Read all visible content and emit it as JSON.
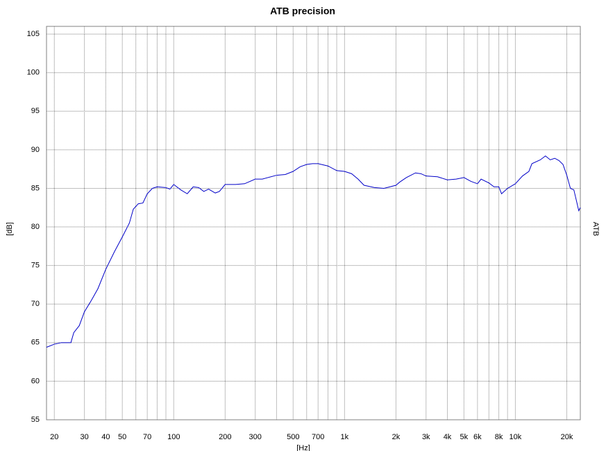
{
  "chart_data": {
    "type": "line",
    "title": "ATB precision",
    "x_label": "[Hz]",
    "y_label": "[dB]",
    "right_label": "ATB",
    "color": "#0000c8",
    "x_log": true,
    "grid": true,
    "xlim": [
      18,
      24000
    ],
    "ylim": [
      55,
      106
    ],
    "yticks": [
      55,
      60,
      65,
      70,
      75,
      80,
      85,
      90,
      95,
      100,
      105
    ],
    "xticks": [
      20,
      30,
      40,
      50,
      70,
      100,
      200,
      300,
      500,
      700,
      {
        "value": 1000,
        "label": "1k"
      },
      {
        "value": 2000,
        "label": "2k"
      },
      {
        "value": 3000,
        "label": "3k"
      },
      {
        "value": 4000,
        "label": "4k"
      },
      {
        "value": 5000,
        "label": "5k"
      },
      {
        "value": 6000,
        "label": "6k"
      },
      {
        "value": 8000,
        "label": "8k"
      },
      {
        "value": 10000,
        "label": "10k"
      },
      {
        "value": 20000,
        "label": "20k"
      }
    ],
    "x_minor_gridlines": [
      60,
      80,
      90,
      400,
      600,
      800,
      900,
      7000,
      9000
    ],
    "x": [
      18,
      20,
      22,
      25,
      26,
      28,
      30,
      33,
      36,
      40,
      45,
      50,
      55,
      58,
      62,
      66,
      70,
      75,
      80,
      90,
      95,
      100,
      110,
      120,
      130,
      140,
      150,
      160,
      175,
      185,
      200,
      230,
      260,
      300,
      330,
      400,
      450,
      500,
      550,
      600,
      650,
      700,
      800,
      900,
      1000,
      1100,
      1200,
      1300,
      1500,
      1700,
      2000,
      2100,
      2300,
      2600,
      2800,
      3000,
      3500,
      4000,
      4500,
      5000,
      5500,
      6000,
      6300,
      7000,
      7500,
      8000,
      8300,
      9000,
      10000,
      11000,
      12000,
      12500,
      14000,
      15000,
      16000,
      17000,
      18000,
      19000,
      20000,
      21000,
      22000,
      23000,
      23500,
      24000
    ],
    "values": [
      64.4,
      64.8,
      65.0,
      65.0,
      66.3,
      67.2,
      69.0,
      70.5,
      72.0,
      74.5,
      76.8,
      78.7,
      80.5,
      82.3,
      83.0,
      83.1,
      84.3,
      85.0,
      85.2,
      85.1,
      84.9,
      85.5,
      84.8,
      84.3,
      85.2,
      85.1,
      84.6,
      84.9,
      84.4,
      84.6,
      85.5,
      85.5,
      85.6,
      86.2,
      86.2,
      86.7,
      86.8,
      87.2,
      87.8,
      88.1,
      88.2,
      88.2,
      87.9,
      87.3,
      87.2,
      86.9,
      86.2,
      85.4,
      85.1,
      85.0,
      85.4,
      85.8,
      86.4,
      87.0,
      86.9,
      86.6,
      86.5,
      86.1,
      86.2,
      86.4,
      85.9,
      85.6,
      86.2,
      85.7,
      85.2,
      85.2,
      84.3,
      85.0,
      85.6,
      86.6,
      87.2,
      88.2,
      88.7,
      89.2,
      88.7,
      88.9,
      88.6,
      88.1,
      86.7,
      85.0,
      84.8,
      83.0,
      82.1,
      82.5
    ]
  }
}
